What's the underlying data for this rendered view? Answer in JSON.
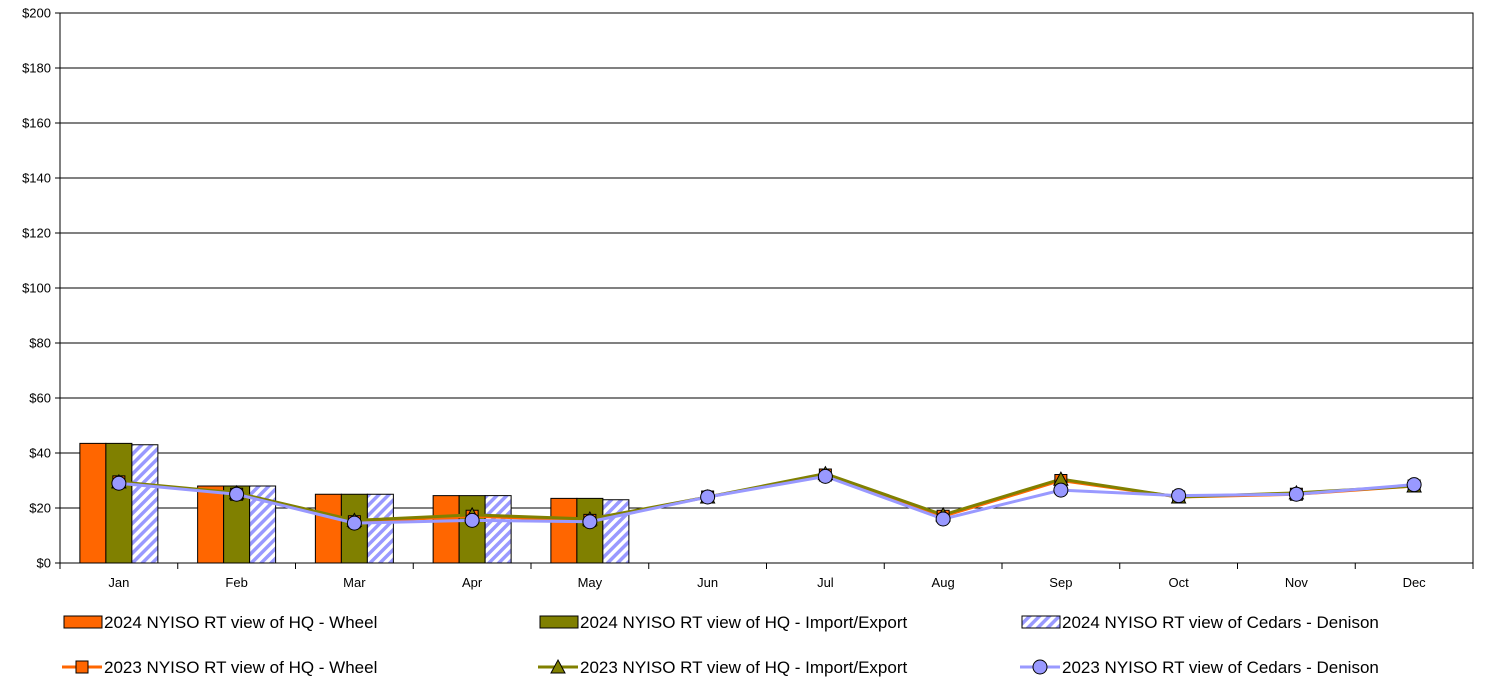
{
  "chart_data": {
    "type": "bar",
    "categories": [
      "Jan",
      "Feb",
      "Mar",
      "Apr",
      "May",
      "Jun",
      "Jul",
      "Aug",
      "Sep",
      "Oct",
      "Nov",
      "Dec"
    ],
    "ylim": [
      0,
      200
    ],
    "y_ticks": [
      0,
      20,
      40,
      60,
      80,
      100,
      120,
      140,
      160,
      180,
      200
    ],
    "y_tick_labels": [
      "$0",
      "$20",
      "$40",
      "$60",
      "$80",
      "$100",
      "$120",
      "$140",
      "$160",
      "$180",
      "$200"
    ],
    "grid": "horizontal",
    "legend_position": "bottom",
    "bar_series": [
      {
        "name": "2024 NYISO RT view of HQ - Wheel",
        "color": "#FF6600",
        "pattern": "solid",
        "values": [
          43.5,
          28,
          25,
          24.5,
          23.5,
          null,
          null,
          null,
          null,
          null,
          null,
          null
        ]
      },
      {
        "name": "2024 NYISO RT view of HQ - Import/Export",
        "color": "#808000",
        "pattern": "solid",
        "values": [
          43.5,
          28,
          25,
          24.5,
          23.5,
          null,
          null,
          null,
          null,
          null,
          null,
          null
        ]
      },
      {
        "name": "2024 NYISO RT view of Cedars - Denison",
        "color": "#9999FF",
        "pattern": "hatched",
        "values": [
          43,
          28,
          25,
          24.5,
          23,
          null,
          null,
          null,
          null,
          null,
          null,
          null
        ]
      }
    ],
    "line_series": [
      {
        "name": "2023 NYISO RT view of HQ - Wheel",
        "color": "#FF6600",
        "marker": "square",
        "values": [
          29.5,
          25,
          15,
          17,
          15.5,
          24,
          32,
          17,
          30,
          24,
          25,
          28
        ]
      },
      {
        "name": "2023 NYISO RT view of HQ - Import/Export",
        "color": "#808000",
        "marker": "triangle",
        "values": [
          29.5,
          25.5,
          15.5,
          17.5,
          16,
          24,
          32.5,
          17.5,
          30.5,
          24,
          25.5,
          28
        ]
      },
      {
        "name": "2023 NYISO RT view of Cedars - Denison",
        "color": "#9999FF",
        "marker": "circle",
        "values": [
          29,
          25,
          14.5,
          15.5,
          15,
          24,
          31.5,
          16,
          26.5,
          24.5,
          25,
          28.5
        ]
      }
    ]
  }
}
